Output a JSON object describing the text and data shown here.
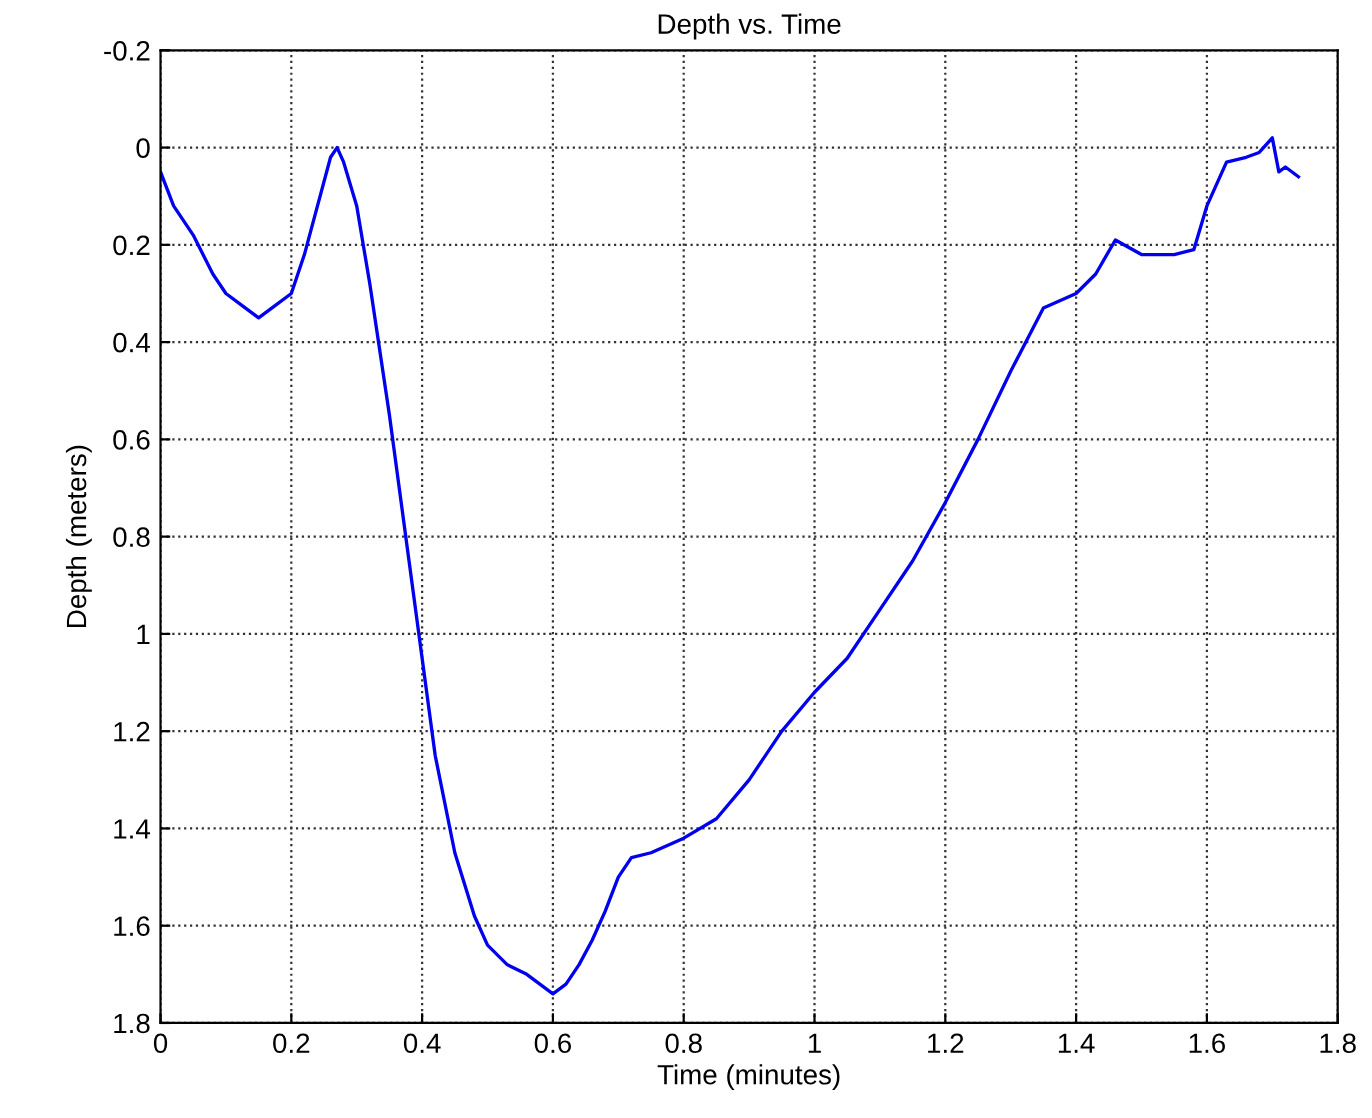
{
  "chart_data": {
    "type": "line",
    "title": "Depth vs. Time",
    "xlabel": "Time (minutes)",
    "ylabel": "Depth (meters)",
    "xlim": [
      0,
      1.8
    ],
    "xticks": [
      0,
      0.2,
      0.4,
      0.6,
      0.8,
      1,
      1.2,
      1.4,
      1.6,
      1.8
    ],
    "ylim": [
      1.8,
      -0.2
    ],
    "yticks": [
      -0.2,
      0,
      0.2,
      0.4,
      0.6,
      0.8,
      1,
      1.2,
      1.4,
      1.6,
      1.8
    ],
    "grid": true,
    "line_style": "solid",
    "marker": "none",
    "series": [
      {
        "color": "#0000ee",
        "x": [
          0,
          0.02,
          0.05,
          0.08,
          0.1,
          0.13,
          0.15,
          0.17,
          0.2,
          0.22,
          0.24,
          0.26,
          0.27,
          0.28,
          0.3,
          0.32,
          0.35,
          0.38,
          0.4,
          0.42,
          0.45,
          0.48,
          0.5,
          0.53,
          0.56,
          0.58,
          0.6,
          0.62,
          0.64,
          0.66,
          0.68,
          0.7,
          0.72,
          0.75,
          0.8,
          0.85,
          0.9,
          0.95,
          1.0,
          1.05,
          1.1,
          1.15,
          1.2,
          1.25,
          1.3,
          1.35,
          1.4,
          1.43,
          1.46,
          1.5,
          1.55,
          1.58,
          1.6,
          1.63,
          1.66,
          1.68,
          1.7,
          1.71,
          1.72,
          1.74
        ],
        "values": [
          0.05,
          0.12,
          0.18,
          0.26,
          0.3,
          0.33,
          0.35,
          0.33,
          0.3,
          0.22,
          0.12,
          0.02,
          0.0,
          0.03,
          0.12,
          0.28,
          0.55,
          0.85,
          1.05,
          1.25,
          1.45,
          1.58,
          1.64,
          1.68,
          1.7,
          1.72,
          1.74,
          1.72,
          1.68,
          1.63,
          1.57,
          1.5,
          1.46,
          1.45,
          1.42,
          1.38,
          1.3,
          1.2,
          1.12,
          1.05,
          0.95,
          0.85,
          0.73,
          0.6,
          0.46,
          0.33,
          0.3,
          0.26,
          0.19,
          0.22,
          0.22,
          0.21,
          0.12,
          0.03,
          0.02,
          0.01,
          -0.02,
          0.05,
          0.04,
          0.06
        ]
      }
    ]
  }
}
